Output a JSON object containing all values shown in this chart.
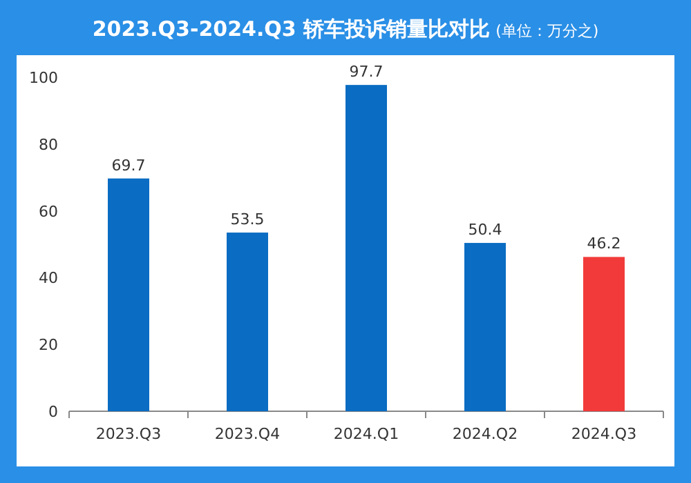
{
  "chart_data": {
    "type": "bar",
    "title": "2023.Q3-2024.Q3 轿车投诉销量比对比",
    "subtitle": "(单位：万分之)",
    "categories": [
      "2023.Q3",
      "2023.Q4",
      "2024.Q1",
      "2024.Q2",
      "2024.Q3"
    ],
    "values": [
      69.7,
      53.5,
      97.7,
      50.4,
      46.2
    ],
    "colors": [
      "#0a6cc2",
      "#0a6cc2",
      "#0a6cc2",
      "#0a6cc2",
      "#f23a3a"
    ],
    "ylim": [
      0,
      100
    ],
    "yticks": [
      0,
      20,
      40,
      60,
      80,
      100
    ],
    "data_labels": true
  }
}
